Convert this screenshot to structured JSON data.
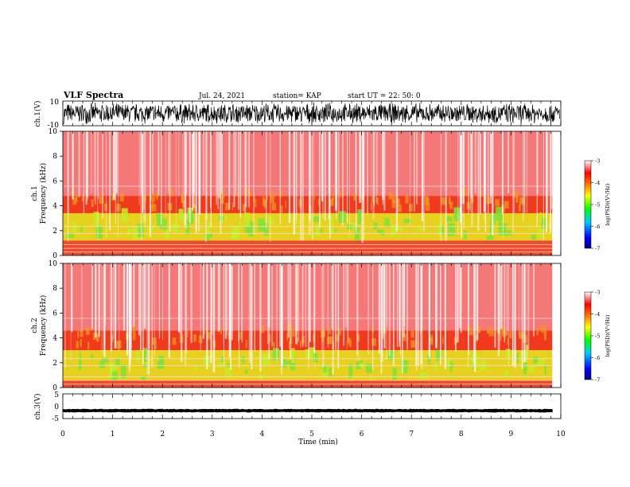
{
  "header": {
    "title": "VLF Spectra",
    "date": "Jul. 24, 2021",
    "station": "station= KAP",
    "start": "start  UT =   22: 50: 0"
  },
  "chart_data": [
    {
      "type": "line",
      "panel": "ch1-waveform",
      "ylabel": "ch.1(V)",
      "ylim": [
        -10,
        10
      ],
      "yticks": [
        "10",
        "-10"
      ],
      "xlim": [
        0,
        10
      ],
      "description_level": {
        "centre": 0,
        "envelope": [
          -9,
          9
        ]
      }
    },
    {
      "type": "heatmap",
      "panel": "ch1-spectrogram",
      "ylabel": "ch.1\nFrequency (kHz)",
      "ylim": [
        0,
        10
      ],
      "yticks": [
        "0",
        "2",
        "4",
        "6",
        "8",
        "10"
      ],
      "xlim": [
        0,
        9.83
      ],
      "bands_khz": {
        "green_yellow": [
          1.2,
          3.4
        ],
        "orange": [
          3.4,
          4.8
        ],
        "red": [
          4.8,
          10
        ]
      }
    },
    {
      "type": "heatmap",
      "panel": "ch2-spectrogram",
      "ylabel": "ch.2\nFrequency (kHz)",
      "ylim": [
        0,
        10
      ],
      "yticks": [
        "0",
        "2",
        "4",
        "6",
        "8",
        "10"
      ],
      "xlim": [
        0,
        9.83
      ],
      "bands_khz": {
        "green_yellow": [
          0.6,
          3.0
        ],
        "orange": [
          3.0,
          4.6
        ],
        "red": [
          4.6,
          10
        ]
      }
    },
    {
      "type": "line",
      "panel": "ch3-waveform",
      "ylabel": "ch.3(V)",
      "ylim": [
        -5,
        5
      ],
      "yticks": [
        "5",
        "0",
        "-5"
      ],
      "xlim": [
        0,
        10
      ],
      "description_level": {
        "centre": -1.8,
        "envelope": [
          -2.2,
          -1.4
        ]
      }
    }
  ],
  "colorbar": {
    "label": "log(PSD)(V²/Hz)",
    "ticks": [
      "-3",
      "-4",
      "-5",
      "-6",
      "-7"
    ],
    "range": [
      -7,
      -3
    ],
    "colors": [
      "#000080",
      "#0000ff",
      "#00c8ff",
      "#00ff00",
      "#ffff00",
      "#ff8000",
      "#ff0000",
      "#ffffff"
    ]
  },
  "xaxis": {
    "label": "Time (min)",
    "ticks": [
      "0",
      "1",
      "2",
      "3",
      "4",
      "5",
      "6",
      "7",
      "8",
      "9",
      "10"
    ],
    "range": [
      0,
      10
    ]
  }
}
